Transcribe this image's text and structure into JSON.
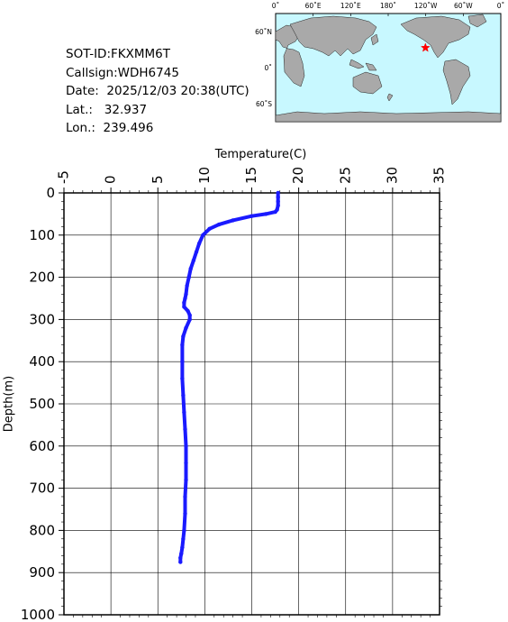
{
  "info": {
    "sot_id": "SOT-ID:FKXMM6T",
    "callsign": "Callsign:WDH6745",
    "date": "Date:  2025/12/03 20:38(UTC)",
    "lat": "Lat.:   32.937",
    "lon": "Lon.:  239.496"
  },
  "map": {
    "lon_labels": [
      "0˚",
      "60˚E",
      "120˚E",
      "180˚",
      "120˚W",
      "60˚W",
      "0˚"
    ],
    "lat_labels": [
      "60˚N",
      "0˚",
      "60˚S"
    ],
    "station": {
      "lon": 239.496,
      "lat": 32.937
    },
    "ocean_color": "#c8f8ff",
    "land_color": "#a9a9a9",
    "marker_color": "#ff0000"
  },
  "chart_data": {
    "type": "line",
    "title": "",
    "xlabel": "Temperature(C)",
    "ylabel": "Depth(m)",
    "xlim": [
      -5,
      35
    ],
    "ylim": [
      1000,
      0
    ],
    "x_ticks": [
      "-5",
      "0",
      "5",
      "10",
      "15",
      "20",
      "25",
      "30",
      "35"
    ],
    "y_ticks": [
      "0",
      "100",
      "200",
      "300",
      "400",
      "500",
      "600",
      "700",
      "800",
      "900",
      "1000"
    ],
    "grid": true,
    "line_color": "#1a1aff",
    "series": [
      {
        "x": [
          17.8,
          17.8,
          17.8,
          17.8,
          17.7,
          17.5,
          16.5,
          15.0,
          13.0,
          11.5,
          10.5,
          9.8,
          9.4,
          9.1,
          8.8,
          8.5,
          8.3,
          8.1,
          8.0,
          7.9,
          7.8,
          7.8,
          8.2,
          8.4,
          8.4,
          8.0,
          7.7,
          7.6,
          7.6,
          7.6,
          7.7,
          7.8,
          7.9,
          8.0,
          8.0,
          8.0,
          7.9,
          7.9,
          7.8,
          7.7,
          7.6,
          7.5,
          7.4,
          7.4
        ],
        "y": [
          0,
          10,
          20,
          30,
          40,
          45,
          50,
          55,
          65,
          75,
          85,
          100,
          120,
          140,
          160,
          180,
          200,
          220,
          240,
          250,
          260,
          270,
          280,
          290,
          300,
          320,
          340,
          360,
          400,
          440,
          480,
          520,
          560,
          600,
          640,
          680,
          720,
          760,
          800,
          820,
          840,
          855,
          865,
          875
        ]
      }
    ]
  }
}
